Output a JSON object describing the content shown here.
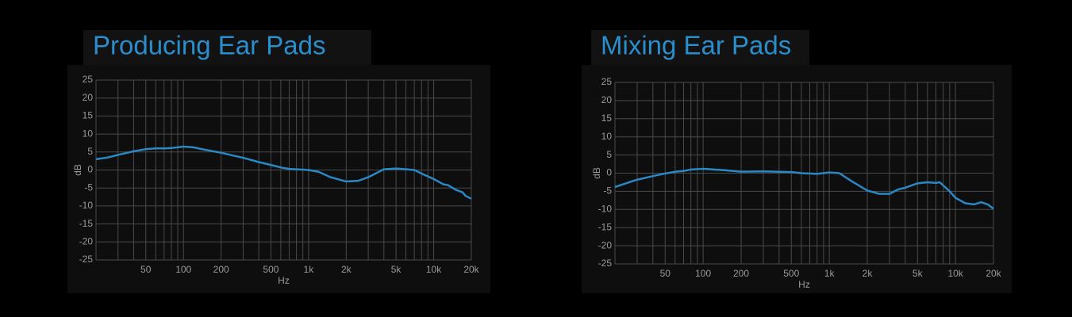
{
  "chart_data": [
    {
      "type": "line",
      "title": "Producing Ear Pads",
      "xlabel": "Hz",
      "ylabel": "dB",
      "xscale": "log",
      "color": "#2a88c4",
      "x": [
        20,
        25,
        30,
        40,
        50,
        60,
        70,
        80,
        100,
        120,
        150,
        200,
        250,
        300,
        400,
        500,
        600,
        700,
        800,
        1000,
        1200,
        1500,
        2000,
        2500,
        3000,
        4000,
        5000,
        6000,
        7000,
        8000,
        10000,
        12000,
        13000,
        15000,
        17000,
        18000,
        20000
      ],
      "values": [
        3.0,
        3.5,
        4.2,
        5.2,
        5.8,
        6.0,
        6.0,
        6.1,
        6.5,
        6.3,
        5.6,
        4.8,
        4.0,
        3.4,
        2.2,
        1.4,
        0.7,
        0.3,
        0.2,
        0,
        -0.5,
        -2.0,
        -3.2,
        -3.0,
        -2.0,
        0.2,
        0.4,
        0.2,
        0,
        -1.0,
        -2.5,
        -4,
        -4.2,
        -5.5,
        -6.2,
        -7.2,
        -8.0
      ],
      "xlim": [
        20,
        20000
      ],
      "xticks": [
        50,
        100,
        200,
        500,
        {
          "value": 1000,
          "label": "1k"
        },
        {
          "value": 2000,
          "label": "2k"
        },
        {
          "value": 5000,
          "label": "5k"
        },
        {
          "value": 10000,
          "label": "10k"
        },
        {
          "value": 20000,
          "label": "20k"
        }
      ],
      "xgrid": [
        20,
        30,
        40,
        50,
        60,
        70,
        80,
        90,
        100,
        200,
        300,
        400,
        500,
        600,
        700,
        800,
        900,
        1000,
        2000,
        3000,
        4000,
        5000,
        6000,
        7000,
        8000,
        9000,
        10000,
        20000
      ],
      "ylim": [
        -25,
        25
      ],
      "yticks": [
        25,
        20,
        15,
        10,
        5,
        0,
        -5,
        -10,
        -15,
        -20,
        -25
      ],
      "grid": true
    },
    {
      "type": "line",
      "title": "Mixing Ear Pads",
      "xlabel": "Hz",
      "ylabel": "dB",
      "xscale": "log",
      "color": "#2a88c4",
      "x": [
        20,
        30,
        40,
        50,
        60,
        70,
        80,
        100,
        150,
        200,
        300,
        500,
        600,
        800,
        1000,
        1200,
        1500,
        2000,
        2500,
        3000,
        3500,
        4000,
        5000,
        6000,
        7000,
        7500,
        9000,
        10000,
        12000,
        14000,
        16000,
        18000,
        20000
      ],
      "values": [
        -3.8,
        -1.8,
        -0.8,
        -0.1,
        0.4,
        0.6,
        1.0,
        1.2,
        0.8,
        0.4,
        0.5,
        0.3,
        0,
        -0.2,
        0.2,
        0,
        -2.2,
        -4.8,
        -5.7,
        -5.7,
        -4.5,
        -4,
        -2.8,
        -2.5,
        -2.7,
        -2.5,
        -5,
        -6.8,
        -8.3,
        -8.6,
        -8.0,
        -8.6,
        -9.8
      ],
      "xlim": [
        20,
        20000
      ],
      "xticks": [
        50,
        100,
        200,
        500,
        {
          "value": 1000,
          "label": "1k"
        },
        {
          "value": 2000,
          "label": "2k"
        },
        {
          "value": 5000,
          "label": "5k"
        },
        {
          "value": 10000,
          "label": "10k"
        },
        {
          "value": 20000,
          "label": "20k"
        }
      ],
      "xgrid": [
        20,
        30,
        40,
        50,
        60,
        70,
        80,
        90,
        100,
        200,
        300,
        400,
        500,
        600,
        700,
        800,
        900,
        1000,
        2000,
        3000,
        4000,
        5000,
        6000,
        7000,
        8000,
        9000,
        10000,
        20000
      ],
      "ylim": [
        -25,
        25
      ],
      "yticks": [
        25,
        20,
        15,
        10,
        5,
        0,
        -5,
        -10,
        -15,
        -20,
        -25
      ],
      "grid": true
    }
  ]
}
